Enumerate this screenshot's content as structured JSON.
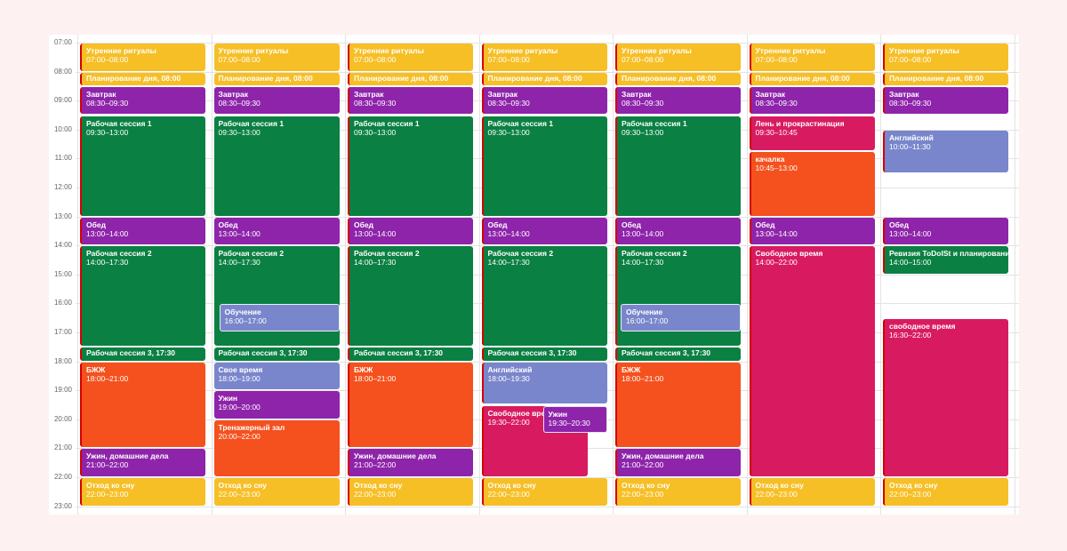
{
  "colors": {
    "yellow": "#f6bf26",
    "purple": "#8e24aa",
    "green": "#0b8043",
    "orange": "#f4511e",
    "lavender": "#7986cb",
    "pink": "#d81b60"
  },
  "hours": [
    "07:00",
    "08:00",
    "09:00",
    "10:00",
    "11:00",
    "12:00",
    "13:00",
    "14:00",
    "15:00",
    "16:00",
    "17:00",
    "18:00",
    "19:00",
    "20:00",
    "21:00",
    "22:00",
    "23:00"
  ],
  "days": [
    {
      "events": [
        {
          "title": "Утренние ритуалы",
          "time": "07:00–08:00",
          "start": 7,
          "end": 8,
          "color": "yellow",
          "bar": true
        },
        {
          "title": "Планирование дня, 08:00",
          "time": "",
          "start": 8,
          "end": 8.5,
          "color": "yellow",
          "bar": true
        },
        {
          "title": "Завтрак",
          "time": "08:30–09:30",
          "start": 8.5,
          "end": 9.5,
          "color": "purple",
          "bar": true
        },
        {
          "title": "Рабочая сессия 1",
          "time": "09:30–13:00",
          "start": 9.5,
          "end": 13,
          "color": "green",
          "bar": true
        },
        {
          "title": "Обед",
          "time": "13:00–14:00",
          "start": 13,
          "end": 14,
          "color": "purple",
          "bar": true
        },
        {
          "title": "Рабочая сессия 2",
          "time": "14:00–17:30",
          "start": 14,
          "end": 17.5,
          "color": "green",
          "bar": true
        },
        {
          "title": "Рабочая сессия 3, 17:30",
          "time": "",
          "start": 17.5,
          "end": 18,
          "color": "green",
          "bar": true
        },
        {
          "title": "БЖЖ",
          "time": "18:00–21:00",
          "start": 18,
          "end": 21,
          "color": "orange",
          "bar": true
        },
        {
          "title": "Ужин, домашние дела",
          "time": "21:00–22:00",
          "start": 21,
          "end": 22,
          "color": "purple",
          "bar": true
        },
        {
          "title": "Отход ко сну",
          "time": "22:00–23:00",
          "start": 22,
          "end": 23,
          "color": "yellow",
          "bar": true
        }
      ]
    },
    {
      "events": [
        {
          "title": "Утренние ритуалы",
          "time": "07:00–08:00",
          "start": 7,
          "end": 8,
          "color": "yellow"
        },
        {
          "title": "Планирование дня, 08:00",
          "time": "",
          "start": 8,
          "end": 8.5,
          "color": "yellow"
        },
        {
          "title": "Завтрак",
          "time": "08:30–09:30",
          "start": 8.5,
          "end": 9.5,
          "color": "purple"
        },
        {
          "title": "Рабочая сессия 1",
          "time": "09:30–13:00",
          "start": 9.5,
          "end": 13,
          "color": "green"
        },
        {
          "title": "Обед",
          "time": "13:00–14:00",
          "start": 13,
          "end": 14,
          "color": "purple"
        },
        {
          "title": "Рабочая сессия 2",
          "time": "14:00–17:30",
          "start": 14,
          "end": 17.5,
          "color": "green"
        },
        {
          "title": "Обучение",
          "time": "16:00–17:00",
          "start": 16,
          "end": 17,
          "color": "lavender",
          "bar": true,
          "outline": true,
          "inset": true
        },
        {
          "title": "Рабочая сессия 3, 17:30",
          "time": "",
          "start": 17.5,
          "end": 18,
          "color": "green"
        },
        {
          "title": "Свое время",
          "time": "18:00–19:00",
          "start": 18,
          "end": 19,
          "color": "lavender"
        },
        {
          "title": "Ужин",
          "time": "19:00–20:00",
          "start": 19,
          "end": 20,
          "color": "purple"
        },
        {
          "title": "Тренажерный зал",
          "time": "20:00–22:00",
          "start": 20,
          "end": 22,
          "color": "orange"
        },
        {
          "title": "Отход ко сну",
          "time": "22:00–23:00",
          "start": 22,
          "end": 23,
          "color": "yellow"
        }
      ]
    },
    {
      "events": [
        {
          "title": "Утренние ритуалы",
          "time": "07:00–08:00",
          "start": 7,
          "end": 8,
          "color": "yellow",
          "bar": true
        },
        {
          "title": "Планирование дня, 08:00",
          "time": "",
          "start": 8,
          "end": 8.5,
          "color": "yellow",
          "bar": true
        },
        {
          "title": "Завтрак",
          "time": "08:30–09:30",
          "start": 8.5,
          "end": 9.5,
          "color": "purple",
          "bar": true
        },
        {
          "title": "Рабочая сессия 1",
          "time": "09:30–13:00",
          "start": 9.5,
          "end": 13,
          "color": "green",
          "bar": true
        },
        {
          "title": "Обед",
          "time": "13:00–14:00",
          "start": 13,
          "end": 14,
          "color": "purple",
          "bar": true
        },
        {
          "title": "Рабочая сессия 2",
          "time": "14:00–17:30",
          "start": 14,
          "end": 17.5,
          "color": "green",
          "bar": true
        },
        {
          "title": "Рабочая сессия 3, 17:30",
          "time": "",
          "start": 17.5,
          "end": 18,
          "color": "green",
          "bar": true
        },
        {
          "title": "БЖЖ",
          "time": "18:00–21:00",
          "start": 18,
          "end": 21,
          "color": "orange",
          "bar": true
        },
        {
          "title": "Ужин, домашние дела",
          "time": "21:00–22:00",
          "start": 21,
          "end": 22,
          "color": "purple",
          "bar": true
        },
        {
          "title": "Отход ко сну",
          "time": "22:00–23:00",
          "start": 22,
          "end": 23,
          "color": "yellow",
          "bar": true
        }
      ]
    },
    {
      "events": [
        {
          "title": "Утренние ритуалы",
          "time": "07:00–08:00",
          "start": 7,
          "end": 8,
          "color": "yellow",
          "bar": true
        },
        {
          "title": "Планирование дня, 08:00",
          "time": "",
          "start": 8,
          "end": 8.5,
          "color": "yellow",
          "bar": true
        },
        {
          "title": "Завтрак",
          "time": "08:30–09:30",
          "start": 8.5,
          "end": 9.5,
          "color": "purple",
          "bar": true
        },
        {
          "title": "Рабочая сессия 1",
          "time": "09:30–13:00",
          "start": 9.5,
          "end": 13,
          "color": "green",
          "bar": true
        },
        {
          "title": "Обед",
          "time": "13:00–14:00",
          "start": 13,
          "end": 14,
          "color": "purple",
          "bar": true
        },
        {
          "title": "Рабочая сессия 2",
          "time": "14:00–17:30",
          "start": 14,
          "end": 17.5,
          "color": "green",
          "bar": true
        },
        {
          "title": "Рабочая сессия 3, 17:30",
          "time": "",
          "start": 17.5,
          "end": 18,
          "color": "green",
          "bar": true
        },
        {
          "title": "Английский",
          "time": "18:00–19:30",
          "start": 18,
          "end": 19.5,
          "color": "lavender",
          "bar": true
        },
        {
          "title": "Свободное время",
          "time": "19:30–22:00",
          "start": 19.5,
          "end": 22,
          "color": "pink",
          "bar": true,
          "slot": "left"
        },
        {
          "title": "Ужин",
          "time": "19:30–20:30",
          "start": 19.5,
          "end": 20.5,
          "color": "purple",
          "outline": true,
          "slot": "right"
        },
        {
          "title": "Отход ко сну",
          "time": "22:00–23:00",
          "start": 22,
          "end": 23,
          "color": "yellow",
          "bar": true
        }
      ]
    },
    {
      "events": [
        {
          "title": "Утренние ритуалы",
          "time": "07:00–08:00",
          "start": 7,
          "end": 8,
          "color": "yellow",
          "bar": true
        },
        {
          "title": "Планирование дня, 08:00",
          "time": "",
          "start": 8,
          "end": 8.5,
          "color": "yellow",
          "bar": true
        },
        {
          "title": "Завтрак",
          "time": "08:30–09:30",
          "start": 8.5,
          "end": 9.5,
          "color": "purple",
          "bar": true
        },
        {
          "title": "Рабочая сессия 1",
          "time": "09:30–13:00",
          "start": 9.5,
          "end": 13,
          "color": "green",
          "bar": true
        },
        {
          "title": "Обед",
          "time": "13:00–14:00",
          "start": 13,
          "end": 14,
          "color": "purple",
          "bar": true
        },
        {
          "title": "Рабочая сессия 2",
          "time": "14:00–17:30",
          "start": 14,
          "end": 17.5,
          "color": "green",
          "bar": true
        },
        {
          "title": "Обучение",
          "time": "16:00–17:00",
          "start": 16,
          "end": 17,
          "color": "lavender",
          "bar": true,
          "outline": true,
          "inset": true
        },
        {
          "title": "Рабочая сессия 3, 17:30",
          "time": "",
          "start": 17.5,
          "end": 18,
          "color": "green",
          "bar": true
        },
        {
          "title": "БЖЖ",
          "time": "18:00–21:00",
          "start": 18,
          "end": 21,
          "color": "orange",
          "bar": true
        },
        {
          "title": "Ужин, домашние дела",
          "time": "21:00–22:00",
          "start": 21,
          "end": 22,
          "color": "purple",
          "bar": true
        },
        {
          "title": "Отход ко сну",
          "time": "22:00–23:00",
          "start": 22,
          "end": 23,
          "color": "yellow",
          "bar": true
        }
      ]
    },
    {
      "events": [
        {
          "title": "Утренние ритуалы",
          "time": "07:00–08:00",
          "start": 7,
          "end": 8,
          "color": "yellow",
          "bar": true
        },
        {
          "title": "Планирование дня, 08:00",
          "time": "",
          "start": 8,
          "end": 8.5,
          "color": "yellow",
          "bar": true
        },
        {
          "title": "Завтрак",
          "time": "08:30–09:30",
          "start": 8.5,
          "end": 9.5,
          "color": "purple",
          "bar": true
        },
        {
          "title": "Лень и прокрастинация",
          "time": "09:30–10:45",
          "start": 9.5,
          "end": 10.75,
          "color": "pink",
          "bar": true
        },
        {
          "title": "качалка",
          "time": "10:45–13:00",
          "start": 10.75,
          "end": 13,
          "color": "orange",
          "bar": true
        },
        {
          "title": "Обед",
          "time": "13:00–14:00",
          "start": 13,
          "end": 14,
          "color": "purple",
          "bar": true
        },
        {
          "title": "Свободное время",
          "time": "14:00–22:00",
          "start": 14,
          "end": 22,
          "color": "pink",
          "bar": true
        },
        {
          "title": "Отход ко сну",
          "time": "22:00–23:00",
          "start": 22,
          "end": 23,
          "color": "yellow",
          "bar": true
        }
      ]
    },
    {
      "events": [
        {
          "title": "Утренние ритуалы",
          "time": "07:00–08:00",
          "start": 7,
          "end": 8,
          "color": "yellow",
          "bar": true
        },
        {
          "title": "Планирование дня, 08:00",
          "time": "",
          "start": 8,
          "end": 8.5,
          "color": "yellow",
          "bar": true
        },
        {
          "title": "Завтрак",
          "time": "08:30–09:30",
          "start": 8.5,
          "end": 9.5,
          "color": "purple",
          "bar": true
        },
        {
          "title": "Английский",
          "time": "10:00–11:30",
          "start": 10,
          "end": 11.5,
          "color": "lavender",
          "bar": true
        },
        {
          "title": "Обед",
          "time": "13:00–14:00",
          "start": 13,
          "end": 14,
          "color": "purple",
          "bar": true
        },
        {
          "title": "Ревизия ToDoISt и планирование нед",
          "time": "14:00–15:00",
          "start": 14,
          "end": 15,
          "color": "green",
          "bar": true
        },
        {
          "title": "свободное время",
          "time": "16:30–22:00",
          "start": 16.5,
          "end": 22,
          "color": "pink",
          "bar": true
        },
        {
          "title": "Отход ко сну",
          "time": "22:00–23:00",
          "start": 22,
          "end": 23,
          "color": "yellow",
          "bar": true
        }
      ]
    }
  ]
}
